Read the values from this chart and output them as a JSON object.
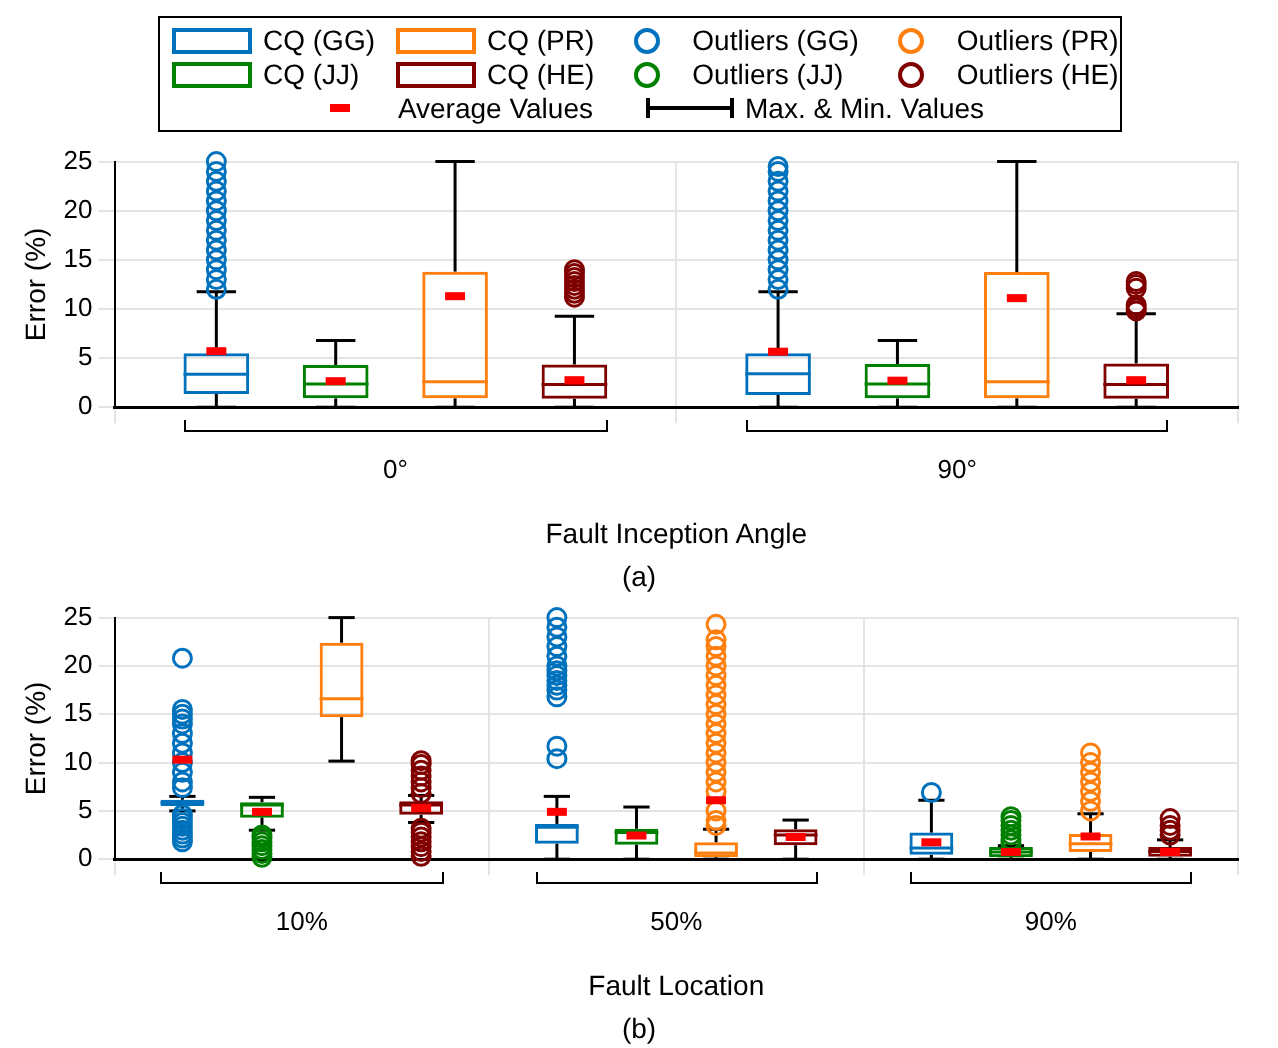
{
  "chart_data": [
    {
      "type": "box",
      "xlabel": "Fault Inception Angle",
      "ylabel": "Error (%)",
      "categories": [
        "0°",
        "90°"
      ],
      "ylim": [
        0,
        25
      ],
      "yticks": [
        0,
        5,
        10,
        15,
        20,
        25
      ],
      "grid": true,
      "legend": "top",
      "annotations": [
        "Outliers (GG)",
        "Outliers (JJ)",
        "Outliers (PR)",
        "Outliers (HE)",
        "Average Values",
        "Max. & Min. Values",
        "(a)"
      ],
      "series": [
        {
          "name": "CQ (GG)",
          "color": "#0072bd",
          "boxes": [
            {
              "low": 0,
              "q1": 1.35,
              "median": 3.35,
              "q3": 5.5,
              "high": 11.75,
              "mean": 5.7,
              "outliers": [
                12,
                13,
                14,
                15,
                16,
                17,
                18,
                19,
                20,
                21,
                22,
                23,
                24,
                25
              ]
            },
            {
              "low": 0,
              "q1": 1.25,
              "median": 3.4,
              "q3": 5.5,
              "high": 11.75,
              "mean": 5.65,
              "outliers": [
                12,
                13,
                14,
                15,
                16,
                17,
                18,
                19,
                20,
                21,
                22,
                23,
                24,
                24.5
              ]
            }
          ]
        },
        {
          "name": "CQ (JJ)",
          "color": "#008000",
          "boxes": [
            {
              "low": 0,
              "q1": 0.9,
              "median": 2.35,
              "q3": 4.3,
              "high": 6.8,
              "mean": 2.65
            },
            {
              "low": 0,
              "q1": 0.9,
              "median": 2.35,
              "q3": 4.4,
              "high": 6.8,
              "mean": 2.7
            }
          ]
        },
        {
          "name": "CQ (PR)",
          "color": "#ff7f0e",
          "boxes": [
            {
              "low": 0,
              "q1": 0.9,
              "median": 2.6,
              "q3": 13.8,
              "high": 25,
              "mean": 11.3
            },
            {
              "low": 0,
              "q1": 0.9,
              "median": 2.6,
              "q3": 13.75,
              "high": 25,
              "mean": 11.1
            }
          ]
        },
        {
          "name": "CQ (HE)",
          "color": "#800000",
          "boxes": [
            {
              "low": 0,
              "q1": 0.85,
              "median": 2.3,
              "q3": 4.35,
              "high": 9.25,
              "mean": 2.75,
              "outliers": [
                11.2,
                11.6,
                12,
                12.4,
                12.8,
                13.2,
                13.6,
                14
              ]
            },
            {
              "low": 0,
              "q1": 0.85,
              "median": 2.3,
              "q3": 4.45,
              "high": 9.5,
              "mean": 2.75,
              "outliers": [
                9.8,
                10.1,
                10.4,
                12.1,
                12.5,
                12.8
              ]
            }
          ]
        }
      ]
    },
    {
      "type": "box",
      "xlabel": "Fault Location",
      "ylabel": "Error (%)",
      "categories": [
        "10%",
        "50%",
        "90%"
      ],
      "ylim": [
        0,
        25
      ],
      "yticks": [
        0,
        5,
        10,
        15,
        20,
        25
      ],
      "grid": true,
      "annotations": [
        "(b)"
      ],
      "series": [
        {
          "color": "#0072bd",
          "boxes": [
            {
              "low": 5,
              "q1": 5.5,
              "median": 5.85,
              "q3": 6.15,
              "high": 6.5,
              "mean": 10.3,
              "outliers": [
                1.8,
                2.2,
                2.6,
                3,
                3.4,
                3.8,
                4.2,
                4.6,
                7.4,
                8,
                9,
                10,
                11,
                12,
                13,
                14,
                14.5,
                15,
                15.5,
                20.8
              ]
            },
            {
              "low": 0,
              "q1": 1.6,
              "median": 3.3,
              "q3": 3.65,
              "high": 6.5,
              "mean": 4.9,
              "outliers": [
                10.4,
                11.7,
                16.8,
                17.5,
                18,
                18.5,
                19,
                19.5,
                20,
                21,
                22,
                23,
                24,
                25
              ]
            },
            {
              "low": 0,
              "q1": 0.45,
              "median": 1.15,
              "q3": 2.75,
              "high": 6.1,
              "mean": 1.75,
              "outliers": [
                6.9
              ]
            }
          ]
        },
        {
          "color": "#008000",
          "boxes": [
            {
              "low": 3,
              "q1": 4.3,
              "median": 5.6,
              "q3": 5.9,
              "high": 6.4,
              "mean": 4.9,
              "outliers": [
                0.2,
                0.6,
                1,
                1.4,
                1.8,
                2.2,
                2.5
              ]
            },
            {
              "low": 0,
              "q1": 1.5,
              "median": 2.75,
              "q3": 3.15,
              "high": 5.4,
              "mean": 2.45
            },
            {
              "low": 0,
              "q1": 0.2,
              "median": 0.75,
              "q3": 1.25,
              "high": 1.4,
              "mean": 0.75,
              "outliers": [
                1.6,
                2,
                2.5,
                3,
                3.5,
                4,
                4.4
              ]
            }
          ]
        },
        {
          "color": "#ff7f0e",
          "boxes": [
            {
              "low": 10.15,
              "q1": 14.7,
              "median": 16.6,
              "q3": 22.4,
              "high": 25
            },
            {
              "low": 0,
              "q1": 0.2,
              "median": 0.65,
              "q3": 1.75,
              "high": 3.1,
              "mean": 6.1,
              "outliers": [
                3.5,
                4,
                5,
                7,
                8,
                9,
                10,
                11,
                12,
                13,
                14,
                15,
                16,
                17,
                18,
                19,
                20,
                21,
                22,
                22.7,
                24.3
              ]
            },
            {
              "low": 0,
              "q1": 0.75,
              "median": 1.6,
              "q3": 2.6,
              "high": 4.7,
              "mean": 2.35,
              "outliers": [
                5,
                6,
                7,
                8,
                9,
                10,
                11
              ]
            }
          ]
        },
        {
          "color": "#800000",
          "boxes": [
            {
              "low": 3.8,
              "q1": 4.6,
              "median": 5.6,
              "q3": 6,
              "high": 6.6,
              "mean": 5.3,
              "outliers": [
                0.3,
                0.8,
                1.3,
                1.8,
                2.3,
                2.8,
                3.2,
                6.8,
                7.4,
                8,
                8.6,
                9.2,
                9.8,
                10.2
              ]
            },
            {
              "low": 0,
              "q1": 1.45,
              "median": 2.5,
              "q3": 3.1,
              "high": 4.05,
              "mean": 2.3
            },
            {
              "low": 0,
              "q1": 0.25,
              "median": 0.8,
              "q3": 1.25,
              "high": 2,
              "mean": 0.75,
              "outliers": [
                2.5,
                3,
                3.5,
                4.2
              ]
            }
          ]
        }
      ]
    }
  ]
}
